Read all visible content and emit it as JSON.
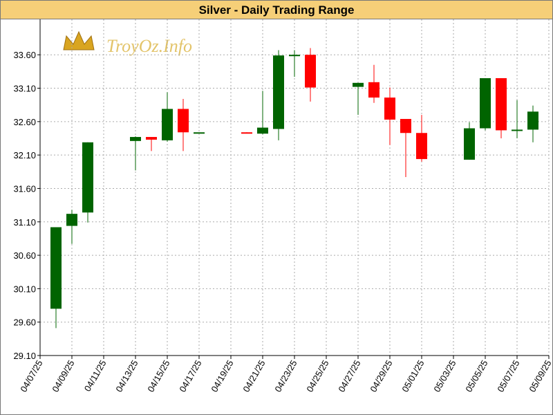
{
  "chart_data": {
    "type": "candlestick",
    "title": "Silver - Daily Trading Range",
    "watermark": "TroyOz.Info",
    "x": [
      "04/08/25",
      "04/09/25",
      "04/10/25",
      "04/13/25",
      "04/14/25",
      "04/15/25",
      "04/16/25",
      "04/17/25",
      "04/20/25",
      "04/21/25",
      "04/22/25",
      "04/23/25",
      "04/24/25",
      "04/27/25",
      "04/28/25",
      "04/29/25",
      "04/30/25",
      "05/01/25",
      "05/04/25",
      "05/05/25",
      "05/06/25",
      "05/07/25",
      "05/08/25"
    ],
    "open": [
      29.8,
      31.04,
      31.24,
      32.31,
      32.37,
      32.32,
      32.79,
      32.44,
      32.44,
      32.42,
      32.49,
      33.58,
      33.6,
      33.12,
      33.19,
      32.96,
      32.64,
      32.43,
      32.03,
      32.5,
      33.25,
      32.47,
      32.48
    ],
    "high": [
      31.02,
      31.28,
      32.29,
      32.38,
      32.37,
      33.04,
      32.94,
      32.44,
      32.44,
      33.06,
      33.67,
      33.67,
      33.7,
      33.18,
      33.45,
      33.11,
      32.64,
      32.7,
      32.59,
      33.25,
      33.25,
      32.92,
      32.84
    ],
    "low": [
      29.51,
      30.77,
      31.09,
      31.87,
      32.16,
      32.3,
      32.16,
      32.44,
      32.43,
      32.41,
      32.32,
      33.27,
      32.9,
      32.7,
      32.88,
      32.25,
      31.77,
      32.0,
      32.03,
      32.47,
      32.35,
      32.35,
      32.29
    ],
    "close": [
      31.02,
      31.22,
      32.29,
      32.37,
      32.33,
      32.79,
      32.44,
      32.44,
      32.43,
      32.51,
      33.59,
      33.6,
      33.11,
      33.18,
      32.96,
      32.63,
      32.43,
      32.04,
      32.5,
      33.25,
      32.47,
      32.48,
      32.75
    ],
    "up_color": "#006400",
    "down_color": "#ff0000",
    "xlim": [
      "04/07/25",
      "05/09/25"
    ],
    "xticks": [
      "04/07/25",
      "04/09/25",
      "04/11/25",
      "04/13/25",
      "04/15/25",
      "04/17/25",
      "04/19/25",
      "04/21/25",
      "04/23/25",
      "04/25/25",
      "04/27/25",
      "04/29/25",
      "05/01/25",
      "05/03/25",
      "05/05/25",
      "05/07/25",
      "05/09/25"
    ],
    "ylim": [
      29.1,
      34.13
    ],
    "yticks": [
      {
        "value": 29.1,
        "label": "29.10"
      },
      {
        "value": 29.6,
        "label": "29.60"
      },
      {
        "value": 30.1,
        "label": "30.10"
      },
      {
        "value": 30.6,
        "label": "30.60"
      },
      {
        "value": 31.1,
        "label": "31.10"
      },
      {
        "value": 31.6,
        "label": "31.60"
      },
      {
        "value": 32.1,
        "label": "32.10"
      },
      {
        "value": 32.6,
        "label": "32.60"
      },
      {
        "value": 33.1,
        "label": "33.10"
      },
      {
        "value": 33.6,
        "label": "33.60"
      }
    ],
    "grid": true
  }
}
